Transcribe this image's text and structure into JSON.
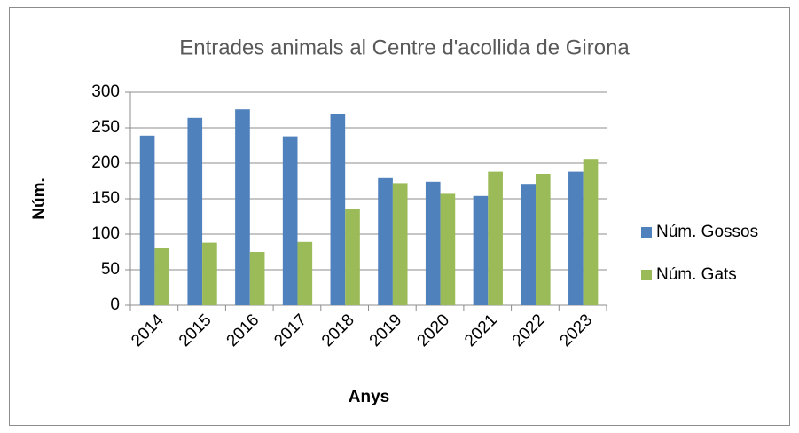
{
  "chart_data": {
    "type": "bar",
    "title": "Entrades animals al Centre d'acollida de Girona",
    "x_label": "Anys",
    "y_label": "Núm.",
    "categories": [
      "2014",
      "2015",
      "2016",
      "2017",
      "2018",
      "2019",
      "2020",
      "2021",
      "2022",
      "2023"
    ],
    "series": [
      {
        "name": "Núm. Gossos",
        "color": "#4f81bd",
        "values": [
          239,
          264,
          276,
          238,
          270,
          179,
          174,
          154,
          171,
          188
        ]
      },
      {
        "name": "Núm. Gats",
        "color": "#9bbb59",
        "values": [
          80,
          88,
          75,
          89,
          135,
          172,
          157,
          188,
          185,
          206
        ]
      }
    ],
    "ylim": [
      0,
      300
    ],
    "yticks": [
      0,
      50,
      100,
      150,
      200,
      250,
      300
    ],
    "grid": true,
    "legend": "right"
  }
}
